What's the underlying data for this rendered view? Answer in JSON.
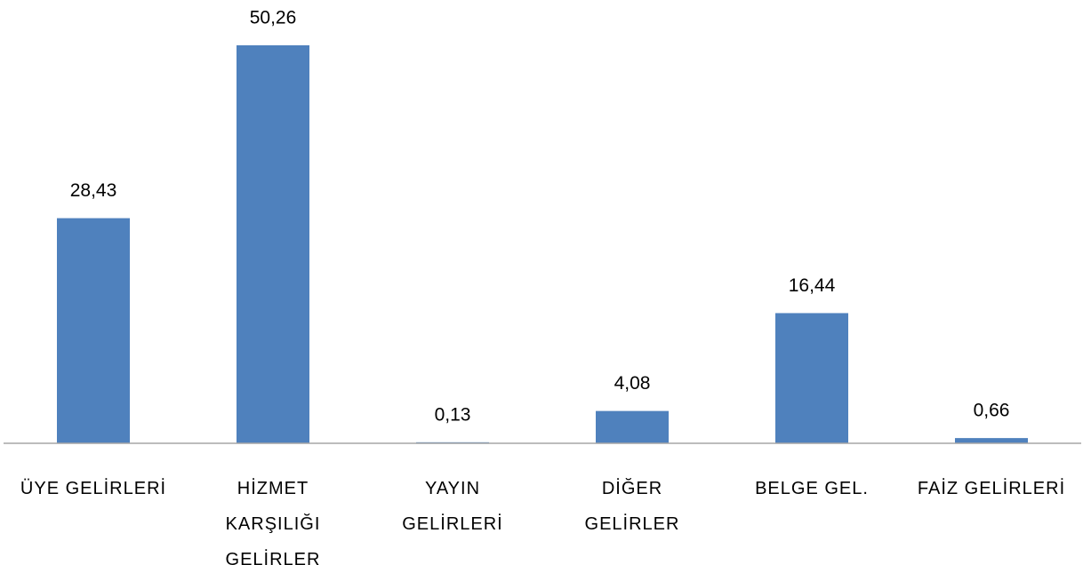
{
  "chart_data": {
    "type": "bar",
    "categories": [
      "ÜYE GELİRLERİ",
      "HİZMET\nKARŞILIĞI\nGELİRLER",
      "YAYIN\nGELİRLERİ",
      "DİĞER\nGELİRLER",
      "BELGE GEL.",
      "FAİZ GELİRLERİ"
    ],
    "values": [
      28.43,
      50.26,
      0.13,
      4.08,
      16.44,
      0.66
    ],
    "value_labels": [
      "28,43",
      "50,26",
      "0,13",
      "4,08",
      "16,44",
      "0,66"
    ],
    "color": "#4f81bd"
  }
}
